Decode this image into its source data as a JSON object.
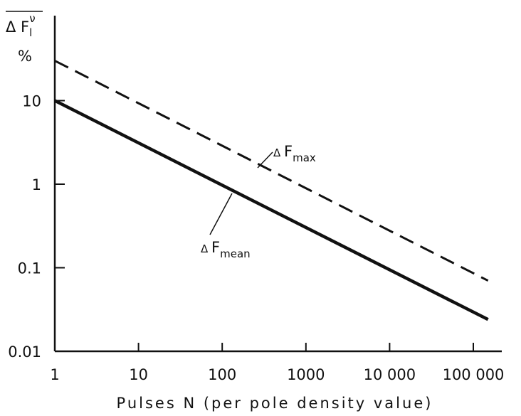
{
  "chart_data": {
    "type": "line",
    "x_scale": "log",
    "y_scale": "log",
    "xlim": [
      1,
      100000
    ],
    "ylim": [
      0.01,
      100
    ],
    "x_ticks": [
      "1",
      "10",
      "100",
      "1000",
      "10 000",
      "100 000"
    ],
    "y_ticks": [
      "0.01",
      "0.1",
      "1",
      "10"
    ],
    "xlabel": "Pulses N (per pole density value)",
    "ylabel_parts": {
      "main": "Δ F",
      "sub": "l",
      "sup": "ν"
    },
    "y_unit": "%",
    "grid": false,
    "series": [
      {
        "style": "dashed",
        "label_parts": {
          "delta": "Δ",
          "main": "F",
          "sub": "max"
        },
        "x": [
          1,
          150000
        ],
        "y": [
          30,
          0.07
        ]
      },
      {
        "style": "solid",
        "label_parts": {
          "delta": "Δ",
          "main": "F",
          "sub": "mean"
        },
        "x": [
          1,
          150000
        ],
        "y": [
          10,
          0.024
        ]
      }
    ]
  }
}
